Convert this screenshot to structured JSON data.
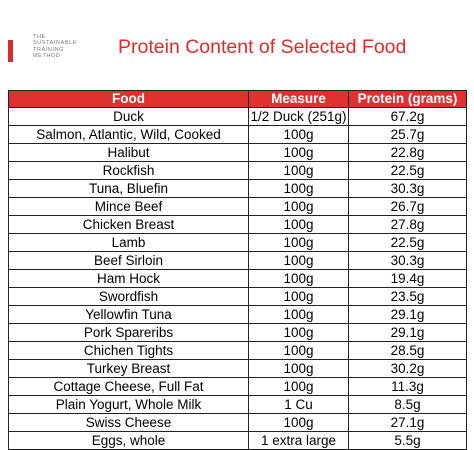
{
  "header": {
    "brand_lines": [
      "THE",
      "SUSTAINABLE",
      "TRAINING",
      "METHOD"
    ],
    "title": "Protein Content of Selected Food"
  },
  "table": {
    "columns": [
      "Food",
      "Measure",
      "Protein (grams)"
    ],
    "rows": [
      [
        "Duck",
        "1/2 Duck (251g)",
        "67.2g"
      ],
      [
        "Salmon, Atlantic, Wild, Cooked",
        "100g",
        "25.7g"
      ],
      [
        "Halibut",
        "100g",
        "22.8g"
      ],
      [
        "Rockfish",
        "100g",
        "22.5g"
      ],
      [
        "Tuna, Bluefin",
        "100g",
        "30.3g"
      ],
      [
        "Mince Beef",
        "100g",
        "26.7g"
      ],
      [
        "Chicken Breast",
        "100g",
        "27.8g"
      ],
      [
        "Lamb",
        "100g",
        "22.5g"
      ],
      [
        "Beef Sirloin",
        "100g",
        "30.3g"
      ],
      [
        "Ham Hock",
        "100g",
        "19.4g"
      ],
      [
        "Swordfish",
        "100g",
        "23.5g"
      ],
      [
        "Yellowfin Tuna",
        "100g",
        "29.1g"
      ],
      [
        "Pork Spareribs",
        "100g",
        "29.1g"
      ],
      [
        "Chichen Tights",
        "100g",
        "28.5g"
      ],
      [
        "Turkey Breast",
        "100g",
        "30.2g"
      ],
      [
        "Cottage Cheese, Full  Fat",
        "100g",
        "11.3g"
      ],
      [
        "Plain Yogurt, Whole Milk",
        "1 Cu",
        "8.5g"
      ],
      [
        "Swiss Cheese",
        "100g",
        "27.1g"
      ],
      [
        "Eggs, whole",
        "1 extra large",
        "5.5g"
      ]
    ]
  },
  "colors": {
    "accent": "#e03131",
    "title": "#e02b2b"
  }
}
